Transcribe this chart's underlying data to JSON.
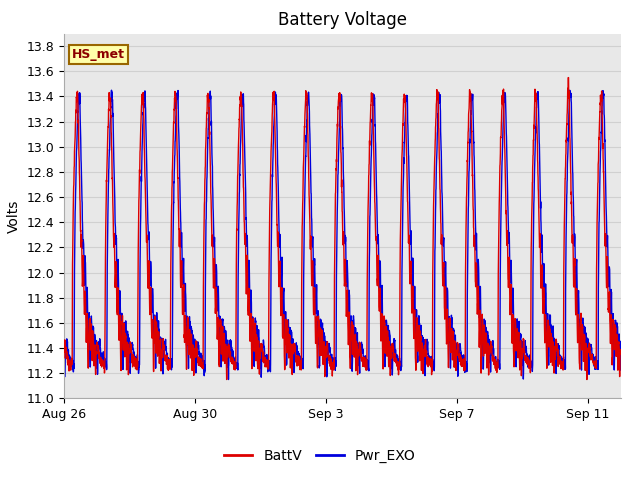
{
  "title": "Battery Voltage",
  "ylabel": "Volts",
  "xlabel": "",
  "ylim": [
    11.0,
    13.9
  ],
  "yticks": [
    11.0,
    11.2,
    11.4,
    11.6,
    11.8,
    12.0,
    12.2,
    12.4,
    12.6,
    12.8,
    13.0,
    13.2,
    13.4,
    13.6,
    13.8
  ],
  "xtick_labels": [
    "Aug 26",
    "Aug 30",
    "Sep 3",
    "Sep 7",
    "Sep 11"
  ],
  "xtick_positions": [
    0,
    4,
    8,
    12,
    16
  ],
  "n_days": 17,
  "battv_color": "#dd0000",
  "pwrexo_color": "#0000dd",
  "legend_label": "HS_met",
  "legend_box_facecolor": "#ffffaa",
  "legend_box_edgecolor": "#996600",
  "line1_label": "BattV",
  "line2_label": "Pwr_EXO",
  "plot_bg": "#e8e8e8",
  "fig_bg": "#ffffff",
  "grid_color": "#d0d0d0",
  "title_fontsize": 12,
  "label_fontsize": 10,
  "tick_fontsize": 9,
  "linewidth": 1.0
}
